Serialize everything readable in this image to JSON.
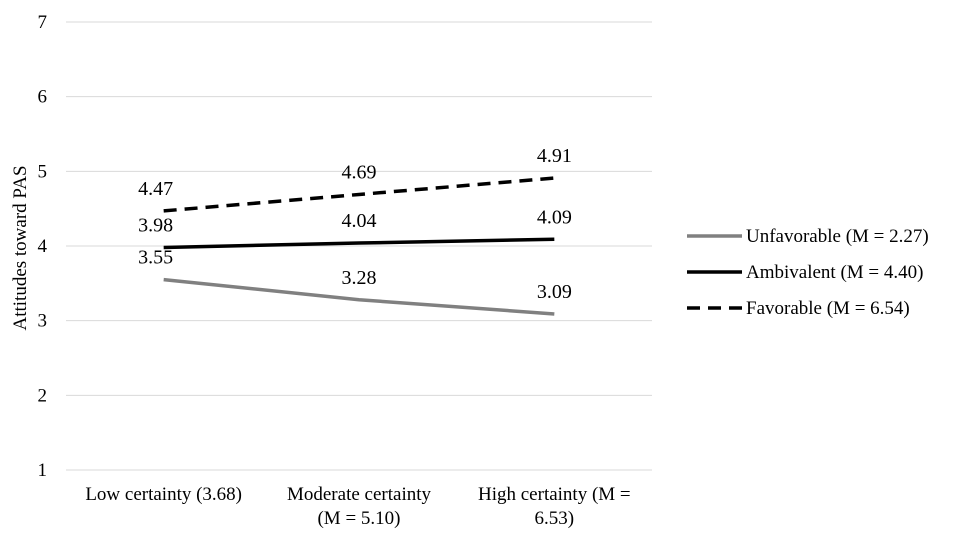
{
  "chart_data": {
    "type": "line",
    "title": "",
    "xlabel": "",
    "ylabel": "Attitudes toward PAS",
    "ylim": [
      1,
      7
    ],
    "yticks": [
      1,
      2,
      3,
      4,
      5,
      6,
      7
    ],
    "grid": true,
    "legend_position": "right",
    "categories": [
      [
        "Low certainty (3.68)"
      ],
      [
        "Moderate certainty",
        "(M = 5.10)"
      ],
      [
        "High certainty (M =",
        "6.53)"
      ]
    ],
    "series": [
      {
        "name": "Unfavorable (M = 2.27)",
        "values": [
          3.55,
          3.28,
          3.09
        ],
        "labels": [
          "3.55",
          "3.28",
          "3.09"
        ],
        "color": "#808080",
        "style": "solid"
      },
      {
        "name": "Ambivalent (M = 4.40)",
        "values": [
          3.98,
          4.04,
          4.09
        ],
        "labels": [
          "3.98",
          "4.04",
          "4.09"
        ],
        "color": "#000000",
        "style": "solid"
      },
      {
        "name": "Favorable (M = 6.54)",
        "values": [
          4.47,
          4.69,
          4.91
        ],
        "labels": [
          "4.47",
          "4.69",
          "4.91"
        ],
        "color": "#000000",
        "style": "dashed"
      }
    ]
  }
}
